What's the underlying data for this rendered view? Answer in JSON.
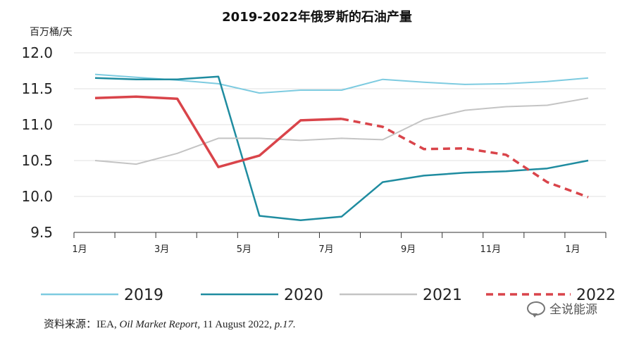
{
  "chart_data": {
    "type": "line",
    "title": "2019-2022年俄罗斯的石油产量",
    "ylabel": "百万桶/天",
    "xlabel": "",
    "ylim": [
      9.5,
      12.0
    ],
    "yticks": [
      "12.0",
      "11.5",
      "11.0",
      "10.5",
      "10.0",
      "9.5"
    ],
    "xtick_labels": [
      "1月",
      "3月",
      "5月",
      "7月",
      "9月",
      "11月",
      "1月"
    ],
    "categories": [
      "1月",
      "2月",
      "3月",
      "4月",
      "5月",
      "6月",
      "7月",
      "8月",
      "9月",
      "10月",
      "11月",
      "12月",
      "1月"
    ],
    "grid": "horizontal",
    "legend_position": "bottom",
    "series": [
      {
        "name": "2019",
        "color": "#7dcbe0",
        "style": "solid",
        "values": [
          11.7,
          11.66,
          11.62,
          11.57,
          11.44,
          11.48,
          11.48,
          11.63,
          11.59,
          11.56,
          11.57,
          11.6,
          11.65
        ]
      },
      {
        "name": "2020",
        "color": "#1f8ca0",
        "style": "solid",
        "values": [
          11.65,
          11.63,
          11.63,
          11.67,
          9.73,
          9.67,
          9.72,
          10.2,
          10.29,
          10.33,
          10.35,
          10.39,
          10.5
        ]
      },
      {
        "name": "2021",
        "color": "#c4c4c4",
        "style": "solid",
        "values": [
          10.5,
          10.45,
          10.6,
          10.81,
          10.81,
          10.78,
          10.81,
          10.79,
          11.07,
          11.2,
          11.25,
          11.27,
          11.37
        ]
      },
      {
        "name": "2022",
        "color": "#d9444a",
        "style": "mixed",
        "values": [
          11.37,
          11.39,
          11.36,
          10.41,
          10.57,
          11.06,
          11.08,
          10.97,
          10.66,
          10.67,
          10.58,
          10.2,
          9.99
        ],
        "dashed_from_index": 6
      }
    ]
  },
  "source": {
    "prefix": "资料来源：",
    "org": "IEA, ",
    "report": "Oil Market Report,",
    "date": " 11 August 2022, ",
    "page": "p.17."
  },
  "watermark": {
    "text": "全说能源",
    "icon": "chat-bubble-icon"
  }
}
